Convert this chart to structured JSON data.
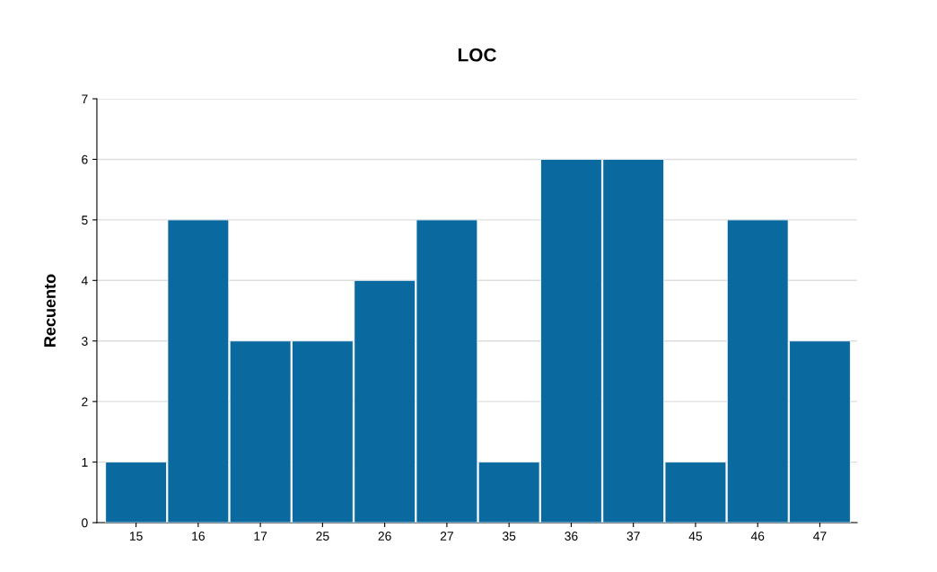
{
  "chart_data": {
    "type": "bar",
    "title": "LOC",
    "ylabel": "Recuento",
    "categories": [
      "15",
      "16",
      "17",
      "25",
      "26",
      "27",
      "35",
      "36",
      "37",
      "45",
      "46",
      "47"
    ],
    "values": [
      1,
      5,
      3,
      3,
      4,
      5,
      1,
      6,
      6,
      1,
      5,
      3
    ],
    "color": "#0a6aa0",
    "ylim": [
      0,
      7
    ],
    "yticks": [
      0,
      1,
      2,
      3,
      4,
      5,
      6,
      7
    ],
    "grid": "y",
    "legend": false
  }
}
